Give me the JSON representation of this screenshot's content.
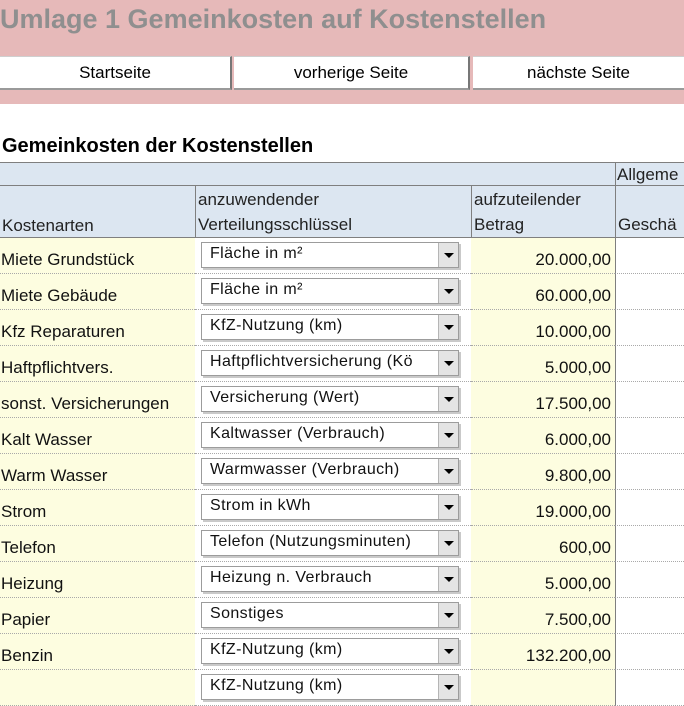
{
  "header": {
    "title": "Umlage 1 Gemeinkosten auf Kostenstellen"
  },
  "nav": {
    "start": "Startseite",
    "prev": "vorherige Seite",
    "next": "nächste Seite"
  },
  "section": {
    "title": "Gemeinkosten der Kostenstellen"
  },
  "table": {
    "group_header": "Allgeme",
    "col_name": "Kostenarten",
    "col_key_line1": "anzuwendender",
    "col_key_line2": "Verteilungsschlüssel",
    "col_amount_line1": "aufzuteilender",
    "col_amount_line2": "Betrag",
    "col_extra": "Geschä",
    "rows": [
      {
        "name": "Miete Grundstück",
        "key": "Fläche in m²",
        "amount": "20.000,00"
      },
      {
        "name": "Miete Gebäude",
        "key": "Fläche in m²",
        "amount": "60.000,00"
      },
      {
        "name": "Kfz Reparaturen",
        "key": "KfZ-Nutzung (km)",
        "amount": "10.000,00"
      },
      {
        "name": "Haftpflichtvers.",
        "key": "Haftpflichtversicherung (Kö",
        "amount": "5.000,00"
      },
      {
        "name": "sonst. Versicherungen",
        "key": "Versicherung (Wert)",
        "amount": "17.500,00"
      },
      {
        "name": "Kalt Wasser",
        "key": "Kaltwasser (Verbrauch)",
        "amount": "6.000,00"
      },
      {
        "name": "Warm Wasser",
        "key": "Warmwasser (Verbrauch)",
        "amount": "9.800,00"
      },
      {
        "name": "Strom",
        "key": "Strom in kWh",
        "amount": "19.000,00"
      },
      {
        "name": "Telefon",
        "key": "Telefon (Nutzungsminuten)",
        "amount": "600,00"
      },
      {
        "name": "Heizung",
        "key": "Heizung n. Verbrauch",
        "amount": "5.000,00"
      },
      {
        "name": "Papier",
        "key": "Sonstiges",
        "amount": "7.500,00"
      },
      {
        "name": "Benzin",
        "key": "KfZ-Nutzung (km)",
        "amount": "132.200,00"
      },
      {
        "name": "",
        "key": "KfZ-Nutzung (km)",
        "amount": ""
      }
    ]
  }
}
